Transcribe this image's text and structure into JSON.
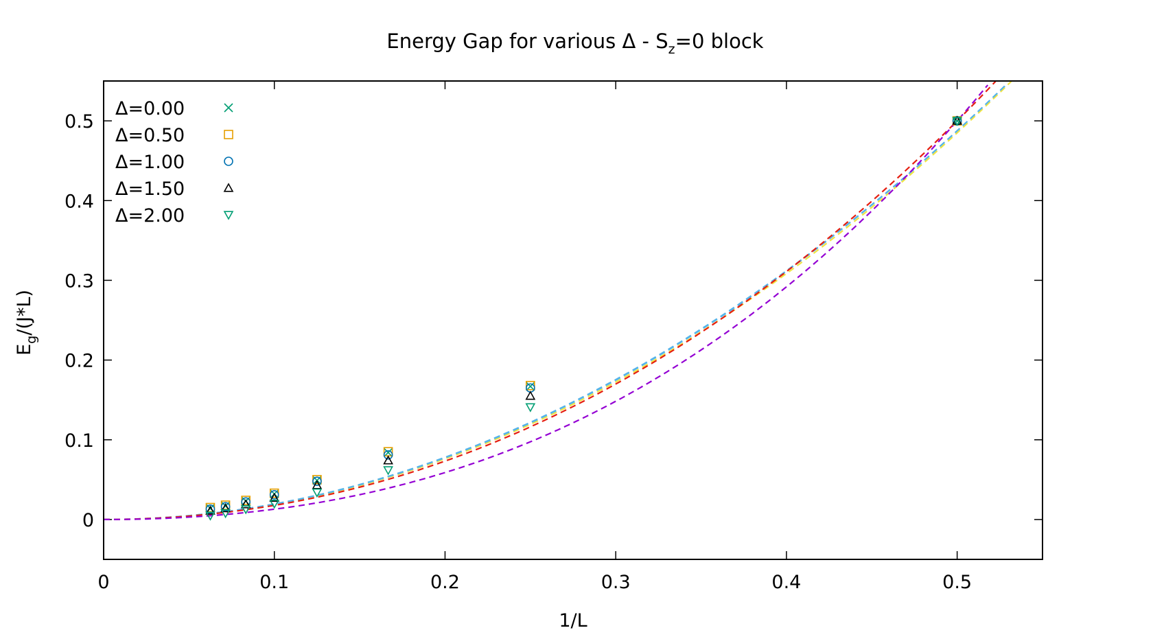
{
  "chart_data": {
    "type": "scatter",
    "title_main": "Energy Gap for various Δ - S",
    "title_sub": "z",
    "title_tail": "=0 block",
    "xlabel": "1/L",
    "ylabel_main": "E",
    "ylabel_sub": "g",
    "ylabel_tail": "/(J*L)",
    "xlim": [
      0,
      0.55
    ],
    "ylim": [
      -0.05,
      0.55
    ],
    "xticks": [
      "0",
      "0.1",
      "0.2",
      "0.3",
      "0.4",
      "0.5"
    ],
    "yticks": [
      "0",
      "0.1",
      "0.2",
      "0.3",
      "0.4",
      "0.5"
    ],
    "legend_position": "top-left",
    "grid": false,
    "x": [
      0.0625,
      0.0714,
      0.0833,
      0.1,
      0.125,
      0.1667,
      0.25,
      0.5
    ],
    "series": [
      {
        "name": "Δ=0.00",
        "marker": "cross",
        "color": "#009e73",
        "values": [
          0.014,
          0.017,
          0.023,
          0.032,
          0.049,
          0.084,
          0.167,
          0.5
        ],
        "fit": {
          "color": "#56b4e9",
          "coef": [
            0.0,
            0.0,
            1.95,
            0.0
          ]
        }
      },
      {
        "name": "Δ=0.50",
        "marker": "square",
        "color": "#e69f00",
        "values": [
          0.015,
          0.018,
          0.024,
          0.033,
          0.05,
          0.085,
          0.168,
          0.5
        ],
        "fit": {
          "color": "#f0e442",
          "coef": [
            0.0,
            0.0,
            1.88,
            0.12
          ]
        }
      },
      {
        "name": "Δ=1.00",
        "marker": "circle",
        "color": "#0072b2",
        "values": [
          0.013,
          0.016,
          0.022,
          0.031,
          0.048,
          0.081,
          0.165,
          0.5
        ],
        "fit": {
          "color": "#56b4e9",
          "coef": [
            0.0,
            0.0,
            1.93,
            0.04
          ]
        }
      },
      {
        "name": "Δ=1.50",
        "marker": "triangle-up",
        "color": "#000000",
        "values": [
          0.011,
          0.014,
          0.019,
          0.027,
          0.043,
          0.074,
          0.155,
          0.5
        ],
        "fit": {
          "color": "#e51e10",
          "coef": [
            0.0,
            0.0,
            1.72,
            0.56
          ]
        }
      },
      {
        "name": "Δ=2.00",
        "marker": "triangle-down",
        "color": "#009e73",
        "values": [
          0.005,
          0.008,
          0.013,
          0.02,
          0.034,
          0.062,
          0.141,
          0.5
        ],
        "fit": {
          "color": "#9400d3",
          "coef": [
            0.0,
            0.0,
            1.12,
            1.76
          ]
        }
      }
    ]
  }
}
